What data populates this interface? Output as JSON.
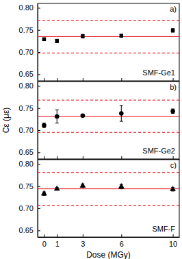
{
  "chart_data": [
    {
      "type": "scatter",
      "annotation": "a)",
      "x": [
        0,
        1,
        3,
        6,
        10
      ],
      "series": [
        {
          "name": "SMF-Ge1",
          "color": "#000000",
          "marker": "square",
          "values": [
            0.729,
            0.725,
            0.736,
            0.737,
            0.749
          ],
          "errors": [
            0.003,
            0.004,
            0.004,
            0.003,
            0.004
          ]
        }
      ],
      "reference_lines": [
        {
          "value": 0.735,
          "color": "#e8000b",
          "line_style": "solid"
        },
        {
          "value": 0.698,
          "color": "#e8000b",
          "line_style": "dashed"
        },
        {
          "value": 0.772,
          "color": "#e8000b",
          "line_style": "dashed"
        }
      ],
      "xlim": [
        -0.5,
        10.5
      ],
      "xticks": [
        0,
        1,
        3,
        6,
        10
      ],
      "ylim": [
        0.635,
        0.81
      ],
      "yticks": [
        0.65,
        {
          "value": 0.7,
          "label": "0.70"
        },
        0.75,
        {
          "value": 0.8,
          "label": "0.80"
        }
      ],
      "tick_labels": "y",
      "grid": false
    },
    {
      "type": "scatter",
      "annotation": "b)",
      "y_label": "Cε (με)",
      "x": [
        0,
        1,
        3,
        6,
        10
      ],
      "series": [
        {
          "name": "SMF-Ge2",
          "color": "#000000",
          "marker": "circle",
          "values": [
            0.711,
            0.731,
            0.733,
            0.738,
            0.743
          ],
          "errors": [
            0.005,
            0.015,
            0.003,
            0.018,
            0.005
          ]
        }
      ],
      "reference_lines": [
        {
          "value": 0.731,
          "color": "#e8000b",
          "line_style": "solid"
        },
        {
          "value": 0.695,
          "color": "#e8000b",
          "line_style": "dashed"
        },
        {
          "value": 0.768,
          "color": "#e8000b",
          "line_style": "dashed"
        }
      ],
      "xlim": [
        -0.5,
        10.5
      ],
      "xticks": [
        0,
        1,
        3,
        6,
        10
      ],
      "ylim": [
        0.635,
        0.81
      ],
      "yticks": [
        0.65,
        {
          "value": 0.7,
          "label": "0.70"
        },
        0.75,
        {
          "value": 0.8,
          "label": "0.80"
        }
      ],
      "tick_labels": "y",
      "grid": false
    },
    {
      "type": "scatter",
      "annotation": "c)",
      "x_label": "Dose (MGy)",
      "x": [
        0,
        1,
        3,
        6,
        10
      ],
      "series": [
        {
          "name": "SMF-F",
          "color": "#000000",
          "marker": "triangle",
          "values": [
            0.733,
            0.744,
            0.751,
            0.749,
            0.743
          ],
          "errors": [
            0.004,
            0.003,
            0.004,
            0.005,
            0.004
          ]
        }
      ],
      "reference_lines": [
        {
          "value": 0.744,
          "color": "#e8000b",
          "line_style": "solid"
        },
        {
          "value": 0.707,
          "color": "#e8000b",
          "line_style": "dashed"
        },
        {
          "value": 0.781,
          "color": "#e8000b",
          "line_style": "dashed"
        }
      ],
      "xlim": [
        -0.5,
        10.5
      ],
      "xticks": [
        0,
        1,
        3,
        6,
        10
      ],
      "ylim": [
        0.635,
        0.81
      ],
      "yticks": [
        0.65,
        {
          "value": 0.7,
          "label": "0.70"
        },
        0.75,
        {
          "value": 0.8,
          "label": "0.80"
        }
      ],
      "grid": false
    }
  ]
}
